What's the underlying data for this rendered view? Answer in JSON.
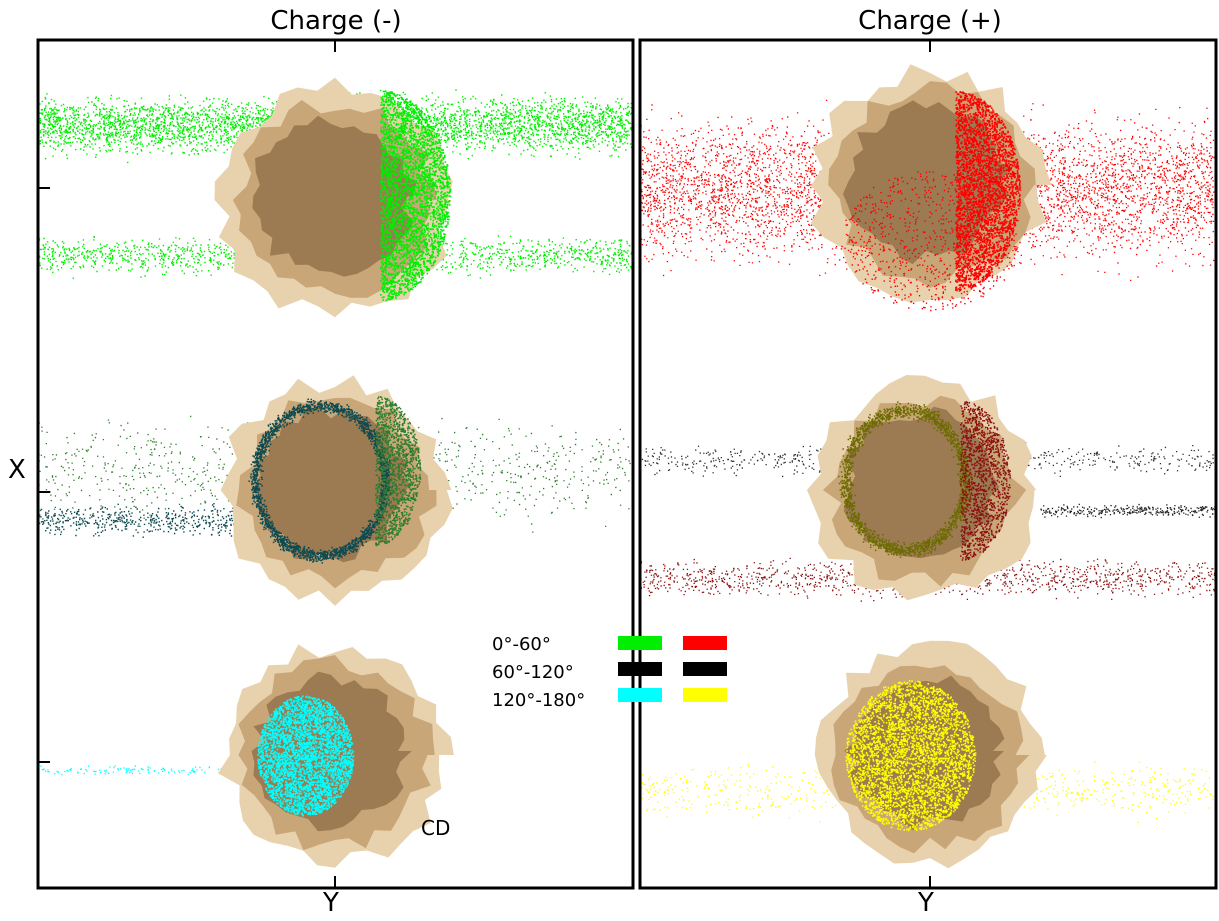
{
  "panels": {
    "left": {
      "title": "Charge (-)",
      "xlabel": "Y"
    },
    "right": {
      "title": "Charge (+)",
      "xlabel": "Y"
    }
  },
  "shared_ylabel": "X",
  "legend": {
    "rows": [
      {
        "label": "0°-60°",
        "negative_color": "#00ee00",
        "positive_color": "#ff0000"
      },
      {
        "label": "60°-120°",
        "negative_color": "#000000",
        "positive_color": "#000000"
      },
      {
        "label": "120°-180°",
        "negative_color": "#00ffff",
        "positive_color": "#ffff00"
      }
    ]
  },
  "annotation": "CD",
  "colors": {
    "cloud_outer": "#e8d2ae",
    "cloud_mid": "#c9a677",
    "cloud_core": "#9c7a52",
    "green": "#00ee00",
    "dark_green": "#2e7d2e",
    "teal": "#0e4a4f",
    "cyan": "#00ffff",
    "red": "#ff0000",
    "dark_red": "#8b1010",
    "olive": "#6b6b00",
    "yellow": "#ffff00"
  }
}
